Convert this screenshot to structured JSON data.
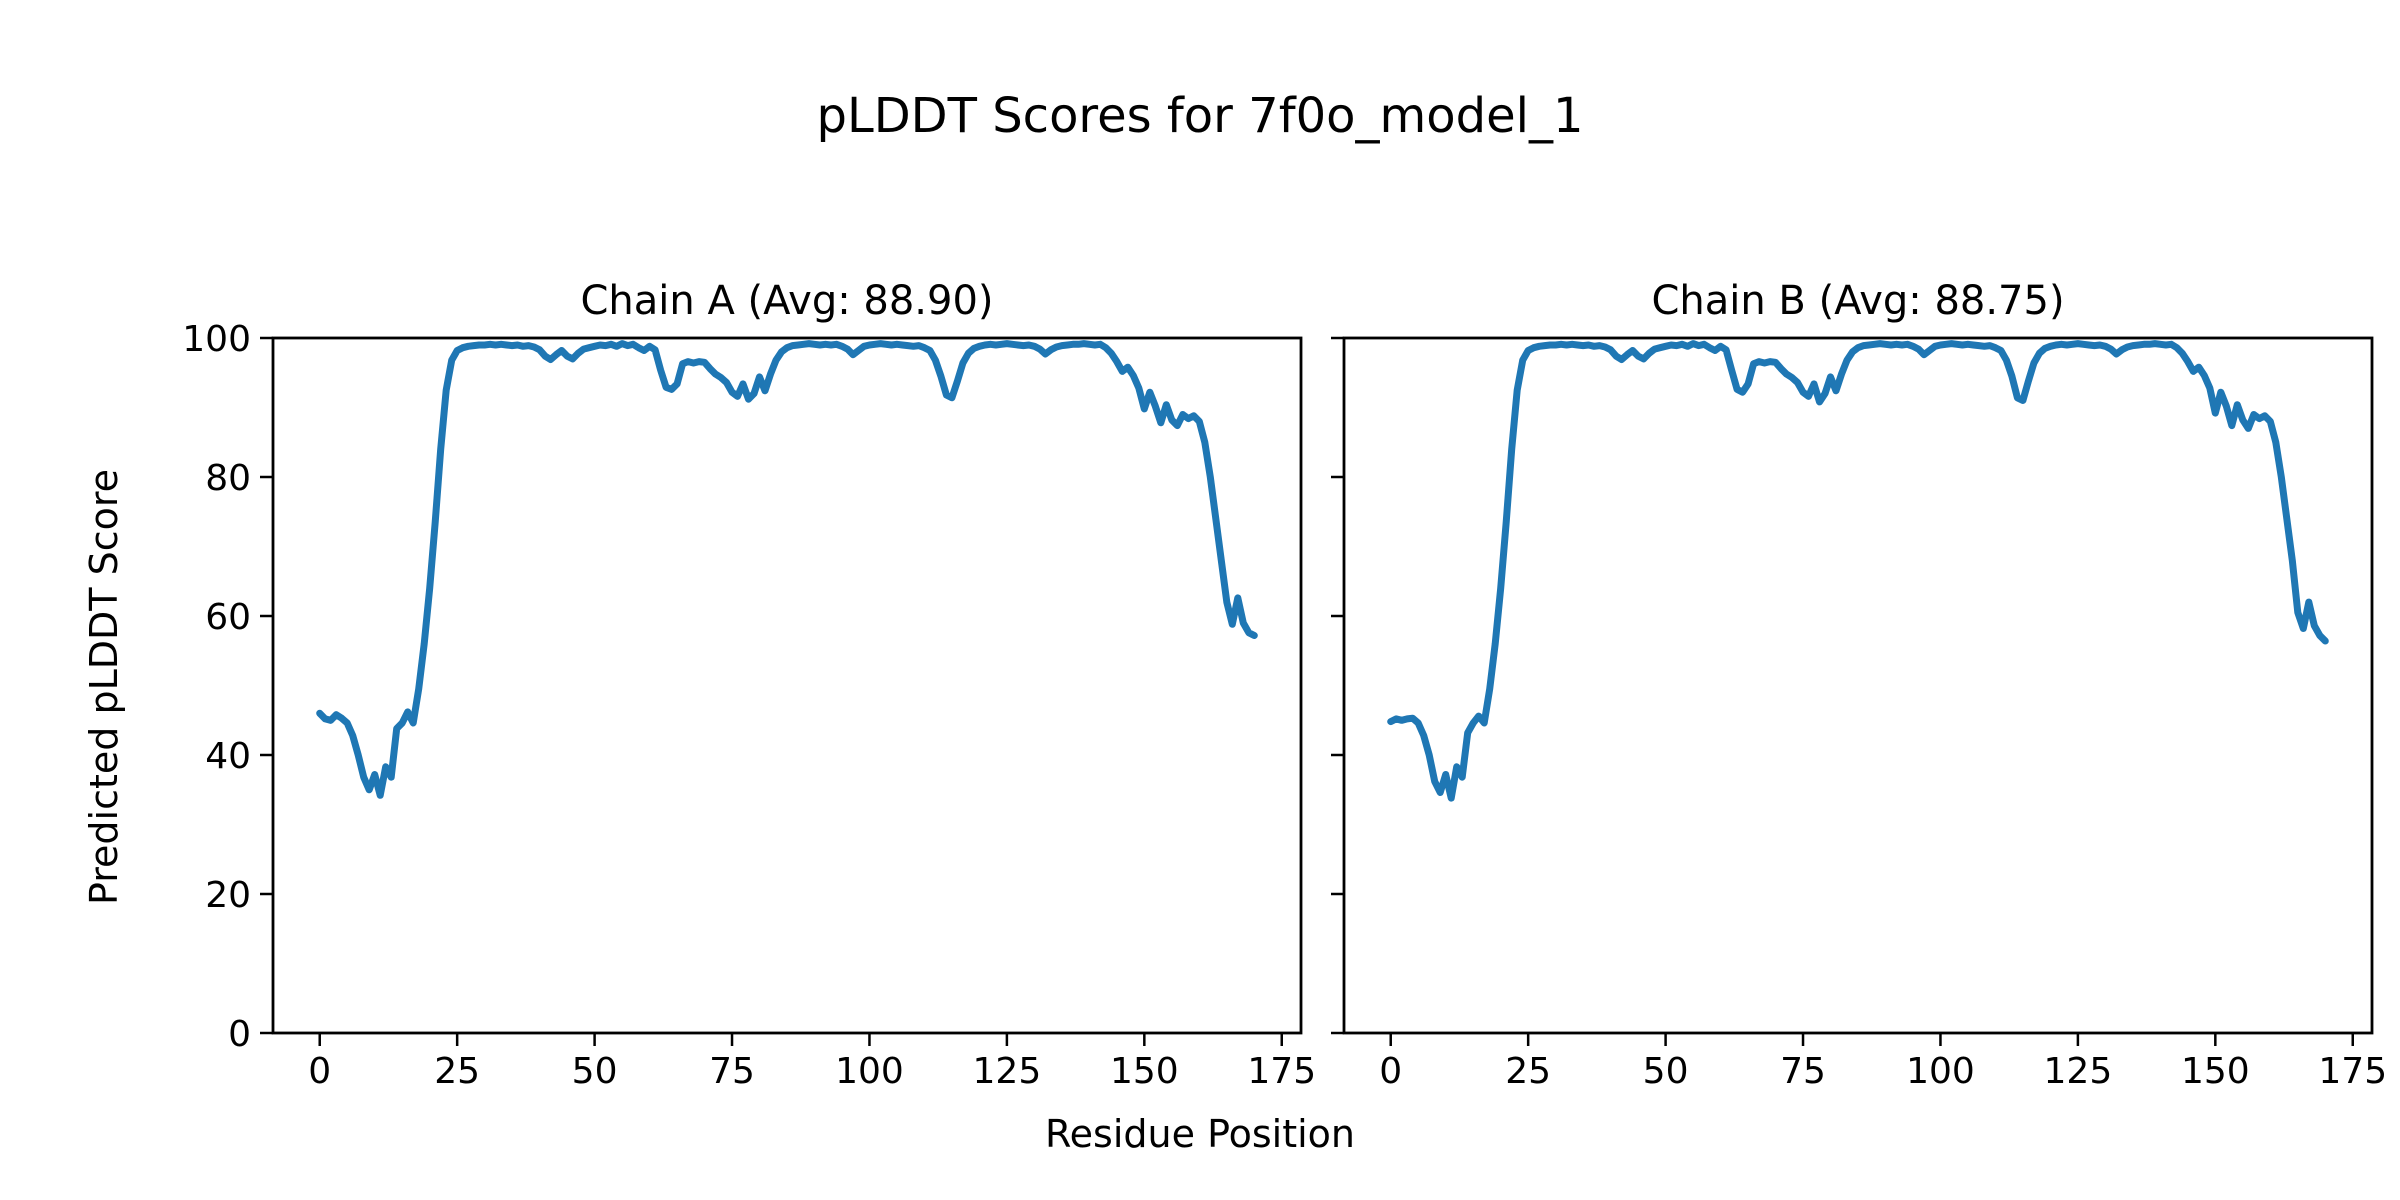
{
  "figure": {
    "title": "pLDDT Scores for 7f0o_model_1",
    "xlabel": "Residue Position",
    "ylabel": "Predicted pLDDT Score"
  },
  "chart_data": {
    "type": "line",
    "title": "pLDDT Scores for 7f0o_model_1",
    "xlabel": "Residue Position",
    "ylabel": "Predicted pLDDT Score",
    "line_color": "#1f77b4",
    "frame_color": "#000000",
    "background_color": "#ffffff",
    "grid": false,
    "legend": false,
    "xlim": [
      -8.5,
      178.5
    ],
    "ylim": [
      0,
      100
    ],
    "xticks": [
      0,
      25,
      50,
      75,
      100,
      125,
      150,
      175
    ],
    "yticks": [
      0,
      20,
      40,
      60,
      80,
      100
    ],
    "x_start": 0,
    "x_step": 1,
    "subplots": [
      {
        "name": "chain-a",
        "title": "Chain A (Avg: 88.90)",
        "avg": 88.9,
        "y_axis_labels": true,
        "values": [
          46.0,
          45.2,
          45.0,
          45.8,
          45.3,
          44.6,
          42.8,
          40.0,
          36.8,
          35.0,
          37.2,
          34.2,
          38.3,
          36.8,
          43.8,
          44.6,
          46.2,
          44.6,
          49.5,
          56.0,
          64.0,
          73.5,
          84.0,
          92.5,
          96.8,
          98.2,
          98.6,
          98.8,
          98.9,
          99.0,
          99.0,
          99.1,
          99.0,
          99.1,
          99.0,
          98.9,
          99.0,
          98.8,
          98.9,
          98.7,
          98.3,
          97.4,
          96.9,
          97.6,
          98.2,
          97.4,
          97.0,
          97.8,
          98.4,
          98.6,
          98.8,
          99.0,
          98.9,
          99.1,
          98.8,
          99.2,
          98.9,
          99.1,
          98.6,
          98.2,
          98.8,
          98.3,
          95.4,
          92.9,
          92.6,
          93.4,
          96.3,
          96.6,
          96.4,
          96.6,
          96.5,
          95.6,
          94.8,
          94.3,
          93.6,
          92.2,
          91.6,
          93.4,
          91.2,
          92.0,
          94.4,
          92.4,
          94.8,
          96.8,
          98.0,
          98.6,
          98.9,
          99.0,
          99.1,
          99.2,
          99.1,
          99.0,
          99.1,
          99.0,
          99.1,
          98.8,
          98.4,
          97.6,
          98.2,
          98.8,
          99.0,
          99.1,
          99.2,
          99.1,
          99.0,
          99.1,
          99.0,
          98.9,
          98.8,
          98.9,
          98.6,
          98.2,
          96.8,
          94.5,
          91.8,
          91.4,
          93.8,
          96.4,
          97.8,
          98.5,
          98.8,
          99.0,
          99.1,
          99.0,
          99.1,
          99.2,
          99.1,
          99.0,
          98.9,
          99.0,
          98.8,
          98.4,
          97.7,
          98.3,
          98.7,
          98.9,
          99.0,
          99.1,
          99.1,
          99.2,
          99.1,
          99.0,
          99.1,
          98.6,
          97.8,
          96.6,
          95.2,
          95.8,
          94.6,
          92.8,
          89.8,
          92.2,
          90.2,
          87.8,
          90.4,
          88.2,
          87.4,
          89.0,
          88.4,
          88.8,
          88.0,
          85.0,
          80.0,
          74.0,
          68.0,
          62.0,
          58.8,
          62.6,
          59.0,
          57.6,
          57.2
        ]
      },
      {
        "name": "chain-b",
        "title": "Chain B (Avg: 88.75)",
        "avg": 88.75,
        "y_axis_labels": false,
        "values": [
          44.8,
          45.2,
          45.0,
          45.2,
          45.3,
          44.6,
          42.8,
          40.0,
          36.2,
          34.6,
          37.2,
          33.8,
          38.3,
          36.8,
          43.2,
          44.6,
          45.6,
          44.6,
          49.5,
          56.0,
          64.0,
          73.5,
          84.0,
          92.5,
          96.8,
          98.2,
          98.6,
          98.8,
          98.9,
          99.0,
          99.0,
          99.1,
          99.0,
          99.1,
          99.0,
          98.9,
          99.0,
          98.8,
          98.9,
          98.7,
          98.3,
          97.4,
          96.9,
          97.6,
          98.2,
          97.4,
          97.0,
          97.8,
          98.4,
          98.6,
          98.8,
          99.0,
          98.9,
          99.1,
          98.8,
          99.2,
          98.9,
          99.1,
          98.6,
          98.2,
          98.8,
          98.3,
          95.4,
          92.6,
          92.2,
          93.4,
          96.3,
          96.6,
          96.4,
          96.6,
          96.5,
          95.6,
          94.8,
          94.3,
          93.6,
          92.2,
          91.6,
          93.4,
          90.8,
          92.0,
          94.4,
          92.4,
          94.8,
          96.8,
          98.0,
          98.6,
          98.9,
          99.0,
          99.1,
          99.2,
          99.1,
          99.0,
          99.1,
          99.0,
          99.1,
          98.8,
          98.4,
          97.6,
          98.2,
          98.8,
          99.0,
          99.1,
          99.2,
          99.1,
          99.0,
          99.1,
          99.0,
          98.9,
          98.8,
          98.9,
          98.6,
          98.2,
          96.8,
          94.5,
          91.4,
          91.0,
          93.8,
          96.4,
          97.8,
          98.5,
          98.8,
          99.0,
          99.1,
          99.0,
          99.1,
          99.2,
          99.1,
          99.0,
          98.9,
          99.0,
          98.8,
          98.4,
          97.7,
          98.3,
          98.7,
          98.9,
          99.0,
          99.1,
          99.1,
          99.2,
          99.1,
          99.0,
          99.1,
          98.6,
          97.8,
          96.6,
          95.2,
          95.8,
          94.6,
          92.8,
          89.2,
          92.2,
          90.2,
          87.4,
          90.4,
          88.2,
          87.0,
          89.0,
          88.4,
          88.8,
          88.0,
          85.0,
          80.0,
          74.0,
          68.0,
          60.5,
          58.2,
          62.0,
          58.6,
          57.2,
          56.4
        ]
      }
    ]
  }
}
